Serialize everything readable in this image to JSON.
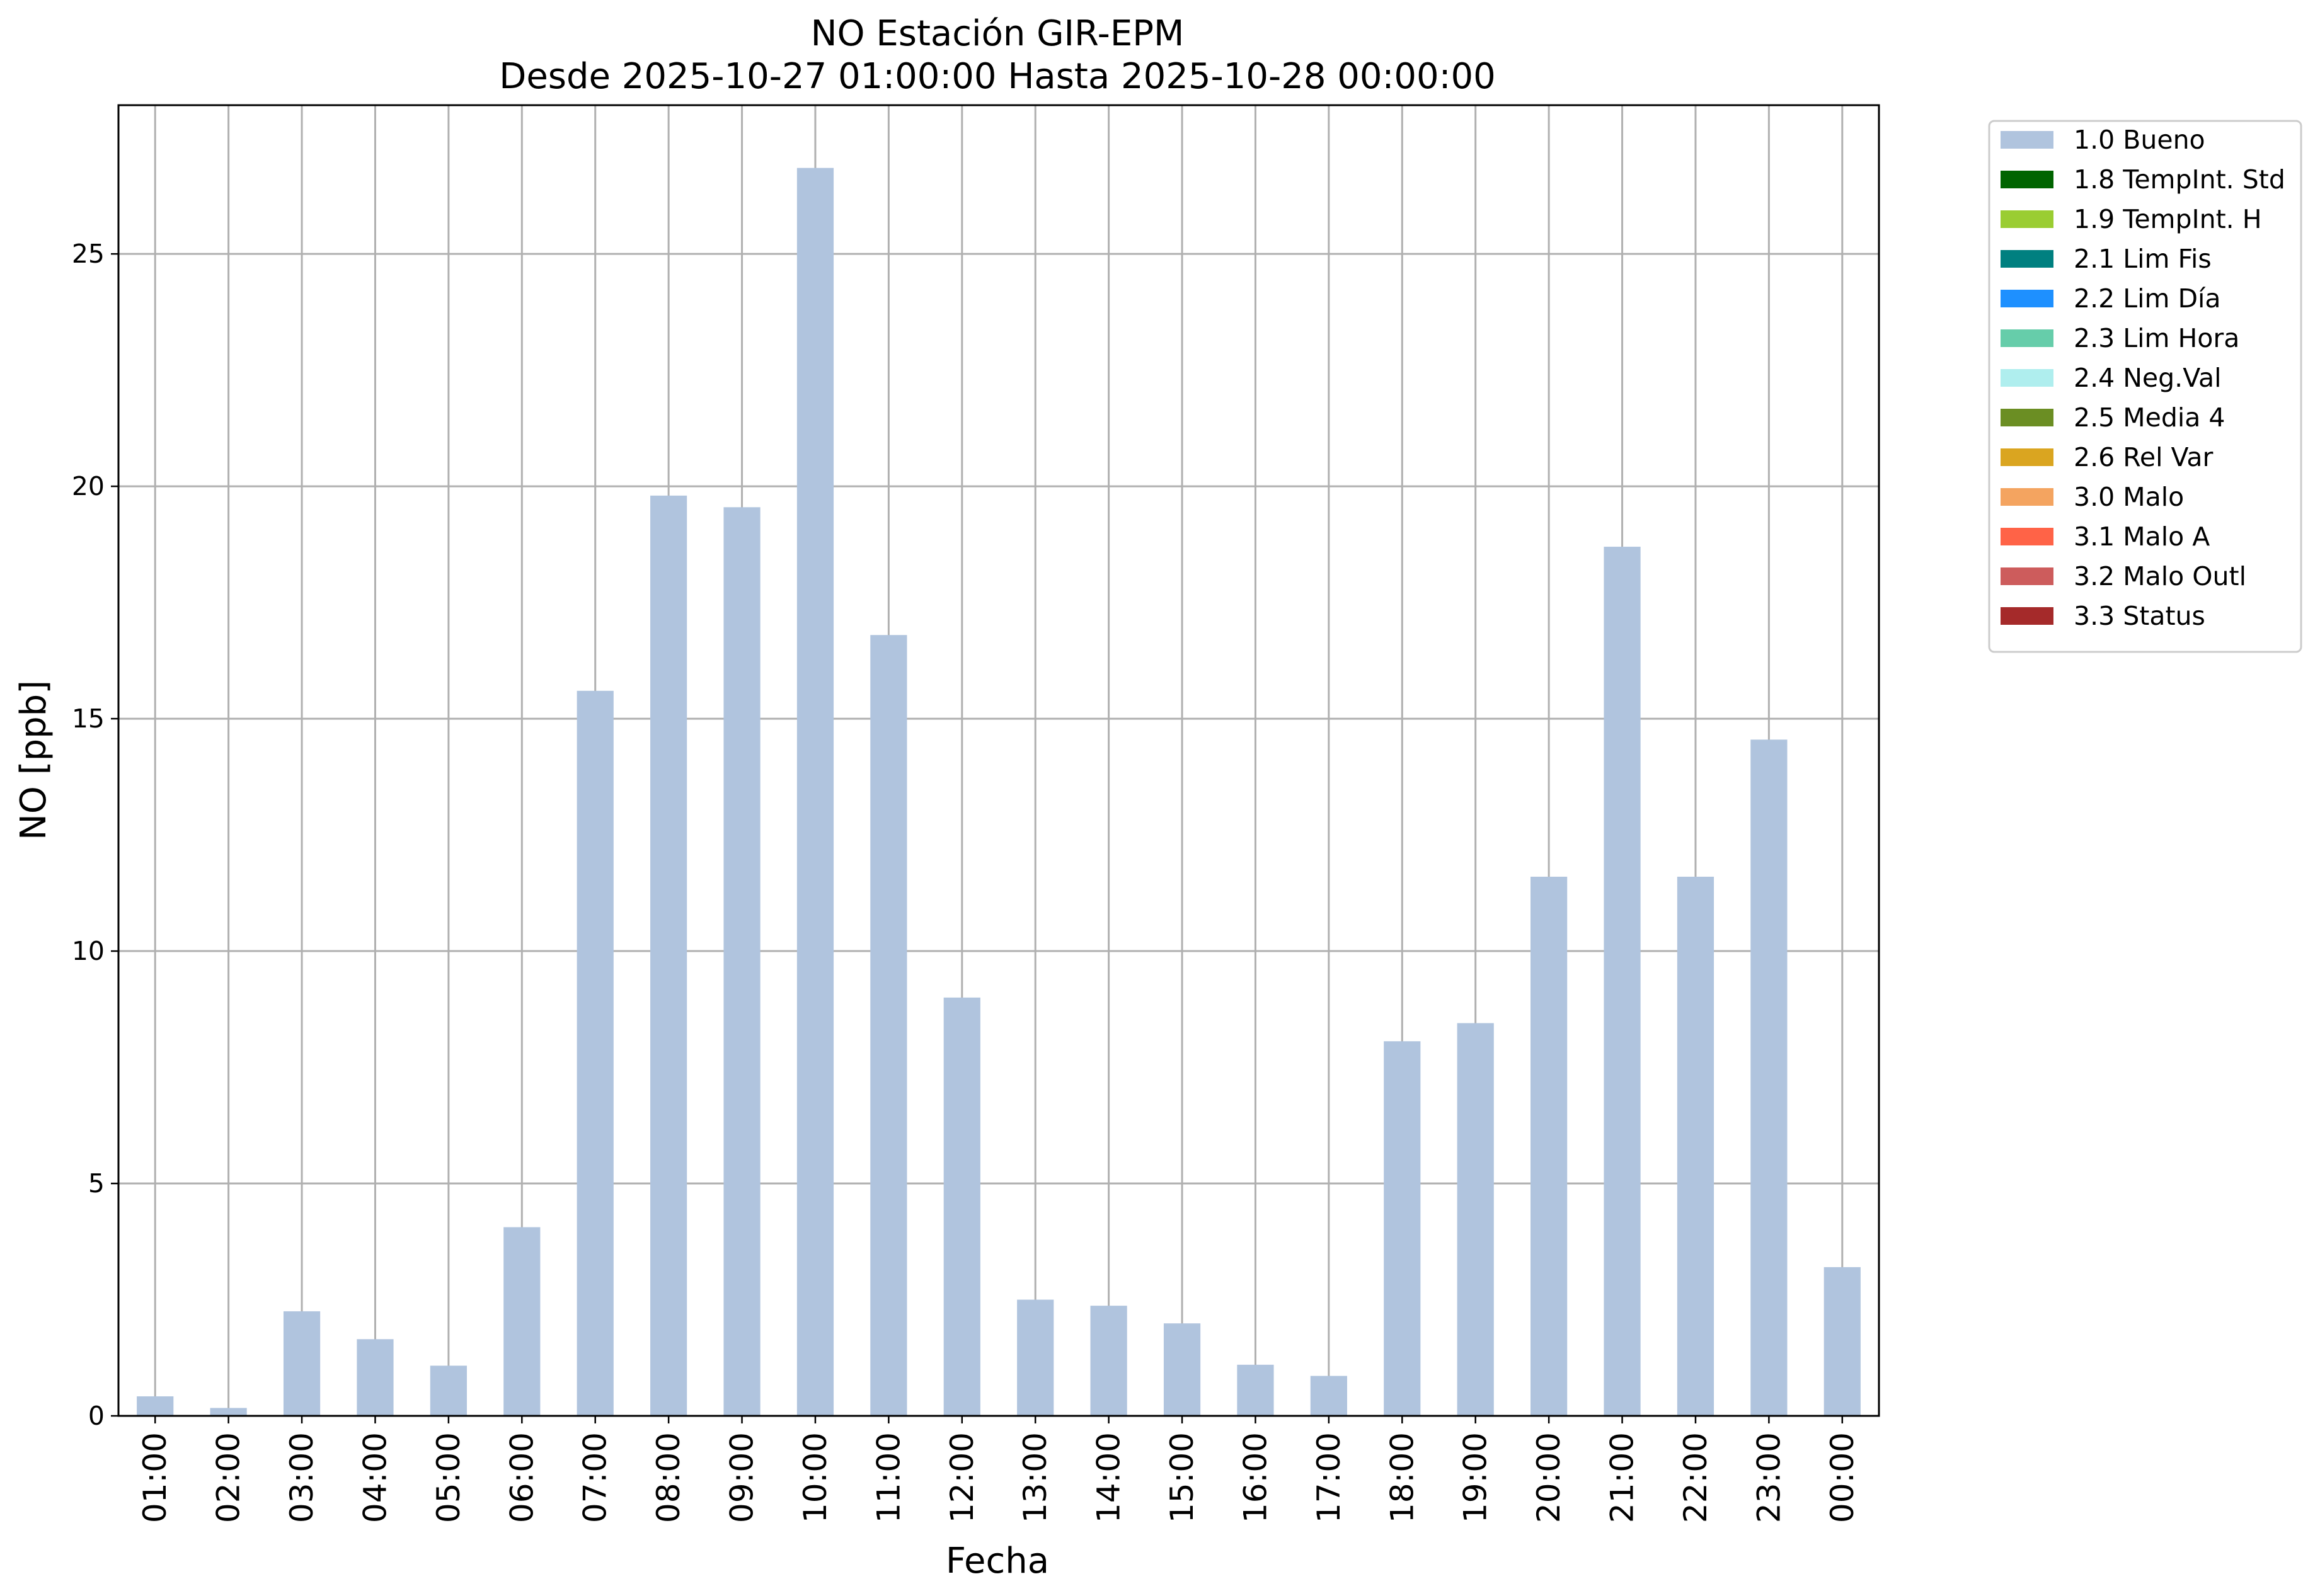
{
  "chart_data": {
    "type": "bar",
    "title": "NO Estación GIR-EPM",
    "subtitle": "Desde 2025-10-27 01:00:00 Hasta 2025-10-28 00:00:00",
    "xlabel": "Fecha",
    "ylabel": "NO [ppb]",
    "ylim": [
      0,
      28.2
    ],
    "yticks": [
      0,
      5,
      10,
      15,
      20,
      25
    ],
    "grid": true,
    "legend_position": "outside-top-right",
    "categories": [
      "01:00",
      "02:00",
      "03:00",
      "04:00",
      "05:00",
      "06:00",
      "07:00",
      "08:00",
      "09:00",
      "10:00",
      "11:00",
      "12:00",
      "13:00",
      "14:00",
      "15:00",
      "16:00",
      "17:00",
      "18:00",
      "19:00",
      "20:00",
      "21:00",
      "22:00",
      "23:00",
      "00:00"
    ],
    "series": [
      {
        "name": "1.0 Bueno",
        "color": "#b0c4de",
        "values": [
          0.42,
          0.17,
          2.25,
          1.65,
          1.08,
          4.06,
          15.6,
          19.8,
          19.55,
          26.85,
          16.8,
          9.0,
          2.5,
          2.37,
          1.99,
          1.1,
          0.86,
          8.06,
          8.45,
          11.6,
          18.7,
          11.6,
          14.55,
          3.2
        ]
      }
    ],
    "legend": [
      {
        "label": "1.0 Bueno",
        "color": "#b0c4de"
      },
      {
        "label": "1.8 TempInt. Std",
        "color": "#006400"
      },
      {
        "label": "1.9 TempInt. H",
        "color": "#9acd32"
      },
      {
        "label": "2.1 Lim Fis",
        "color": "#008080"
      },
      {
        "label": "2.2 Lim Día",
        "color": "#1e90ff"
      },
      {
        "label": "2.3 Lim Hora",
        "color": "#66cdaa"
      },
      {
        "label": "2.4 Neg.Val",
        "color": "#afeeee"
      },
      {
        "label": "2.5 Media 4",
        "color": "#6b8e23"
      },
      {
        "label": "2.6 Rel Var",
        "color": "#daa520"
      },
      {
        "label": "3.0 Malo",
        "color": "#f4a460"
      },
      {
        "label": "3.1 Malo A",
        "color": "#ff6347"
      },
      {
        "label": "3.2 Malo Outl",
        "color": "#cd5c5c"
      },
      {
        "label": "3.3 Status",
        "color": "#a52a2a"
      }
    ]
  }
}
